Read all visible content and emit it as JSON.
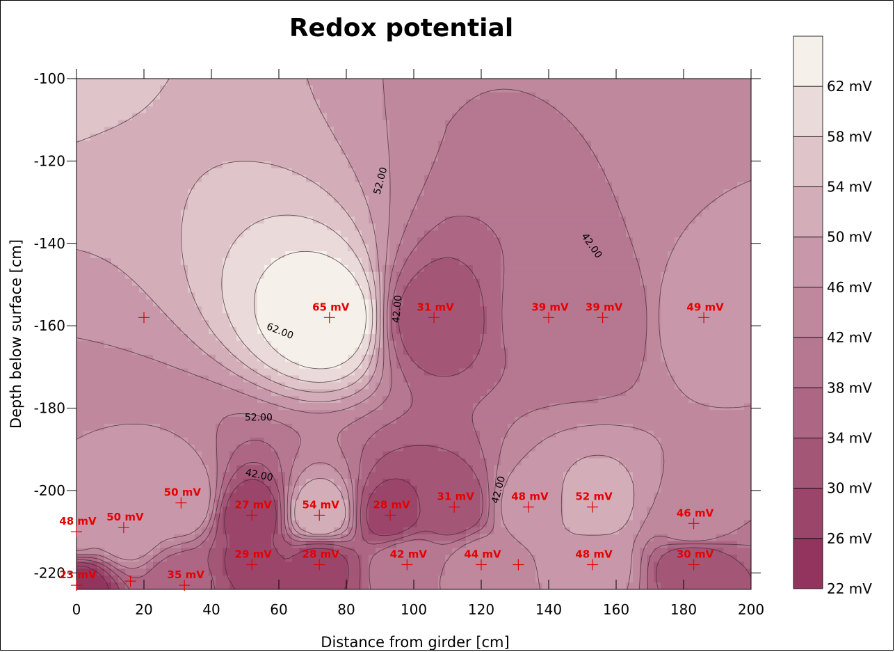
{
  "chart_data": {
    "type": "contour",
    "title": "Redox potential",
    "xlabel": "Distance from girder [cm]",
    "ylabel": "Depth below surface [cm]",
    "xlim": [
      0,
      200
    ],
    "ylim": [
      -224,
      -100
    ],
    "x_ticks": [
      0,
      20,
      40,
      60,
      80,
      100,
      120,
      140,
      160,
      180,
      200
    ],
    "y_ticks": [
      -100,
      -120,
      -140,
      -160,
      -180,
      -200,
      -220
    ],
    "x_tick_labels": [
      "0",
      "20",
      "40",
      "60",
      "80",
      "100",
      "120",
      "140",
      "160",
      "180",
      "200"
    ],
    "y_tick_labels": [
      "-100",
      "-120",
      "-140",
      "-160",
      "-180",
      "-200",
      "-220"
    ],
    "unit": "mV",
    "levels": [
      22,
      26,
      30,
      34,
      38,
      42,
      46,
      50,
      54,
      58,
      62,
      66
    ],
    "legend_labels": [
      "62 mV",
      "58 mV",
      "54 mV",
      "50 mV",
      "46 mV",
      "42 mV",
      "38 mV",
      "34 mV",
      "30 mV",
      "26 mV",
      "22 mV"
    ],
    "colors": {
      "low": "#8e2c58",
      "mid": "#c99aab",
      "high": "#fbfbf1",
      "marker": "#e00000",
      "label": "#e60000"
    },
    "points": [
      {
        "x": 20,
        "y": -158,
        "label": null
      },
      {
        "x": 75,
        "y": -158,
        "label": "65 mV"
      },
      {
        "x": 106,
        "y": -158,
        "label": "31 mV"
      },
      {
        "x": 140,
        "y": -158,
        "label": "39 mV"
      },
      {
        "x": 156,
        "y": -158,
        "label": "39 mV"
      },
      {
        "x": 186,
        "y": -158,
        "label": "49 mV"
      },
      {
        "x": 0,
        "y": -210,
        "label": "48 mV"
      },
      {
        "x": 14,
        "y": -209,
        "label": "50 mV"
      },
      {
        "x": 31,
        "y": -203,
        "label": "50 mV"
      },
      {
        "x": 52,
        "y": -206,
        "label": "27 mV"
      },
      {
        "x": 72,
        "y": -206,
        "label": "54 mV"
      },
      {
        "x": 93,
        "y": -206,
        "label": "28 mV"
      },
      {
        "x": 112,
        "y": -204,
        "label": "31 mV"
      },
      {
        "x": 134,
        "y": -204,
        "label": "48 mV"
      },
      {
        "x": 153,
        "y": -204,
        "label": "52 mV"
      },
      {
        "x": 183,
        "y": -208,
        "label": "46 mV"
      },
      {
        "x": 0,
        "y": -223,
        "label": "23 mV"
      },
      {
        "x": 16,
        "y": -222,
        "label": null
      },
      {
        "x": 32,
        "y": -223,
        "label": "35 mV"
      },
      {
        "x": 52,
        "y": -218,
        "label": "29 mV"
      },
      {
        "x": 72,
        "y": -218,
        "label": "28 mV"
      },
      {
        "x": 98,
        "y": -218,
        "label": "42 mV"
      },
      {
        "x": 120,
        "y": -218,
        "label": "44 mV"
      },
      {
        "x": 131,
        "y": -218,
        "label": null
      },
      {
        "x": 153,
        "y": -218,
        "label": "48 mV"
      },
      {
        "x": 183,
        "y": -218,
        "label": "30 mV"
      }
    ],
    "contour_labels": [
      {
        "x": 91,
        "y": -125,
        "text": "52.00",
        "angle": -75
      },
      {
        "x": 152,
        "y": -141,
        "text": "42.00",
        "angle": 55
      },
      {
        "x": 96,
        "y": -156,
        "text": "42.00",
        "angle": -85
      },
      {
        "x": 60,
        "y": -162,
        "text": "62.00",
        "angle": 22
      },
      {
        "x": 54,
        "y": -183,
        "text": "52.00",
        "angle": 0
      },
      {
        "x": 54,
        "y": -197,
        "text": "42.00",
        "angle": 12
      },
      {
        "x": 126,
        "y": -200,
        "text": "42.00",
        "angle": -75
      }
    ]
  }
}
